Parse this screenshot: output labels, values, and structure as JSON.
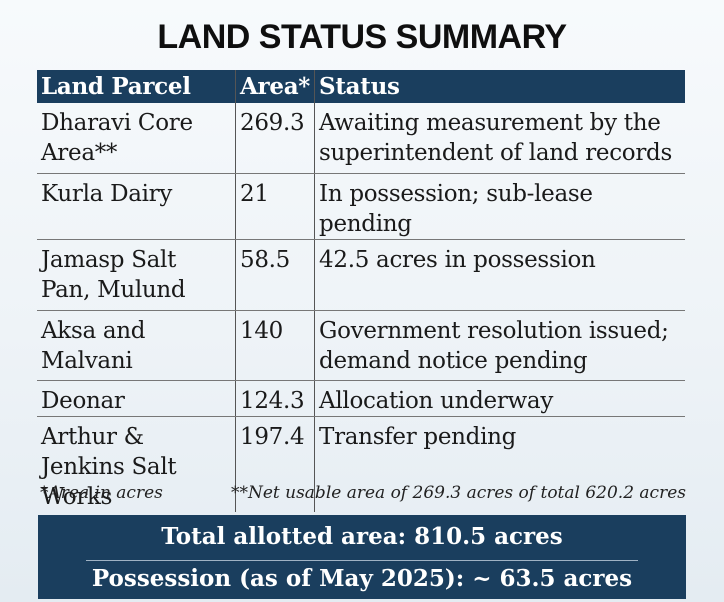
{
  "title": "LAND STATUS SUMMARY",
  "table": {
    "headers": [
      "Land Parcel",
      "Area*",
      "Status"
    ],
    "rows": [
      {
        "parcel": "Dharavi Core Area**",
        "area": "269.3",
        "status": "Awaiting measurement by the superintendent of land records"
      },
      {
        "parcel": "Kurla Dairy",
        "area": "21",
        "status": "In possession; sub-lease pending"
      },
      {
        "parcel": "Jamasp Salt Pan, Mulund",
        "area": "58.5",
        "status": "42.5 acres in possession"
      },
      {
        "parcel": "Aksa and Malvani",
        "area": "140",
        "status": "Government resolution issued; demand notice pending"
      },
      {
        "parcel": "Deonar",
        "area": "124.3",
        "status": "Allocation underway"
      },
      {
        "parcel": "Arthur & Jenkins Salt Works",
        "area": "197.4",
        "status": "Transfer pending"
      }
    ]
  },
  "notes": {
    "area_unit": "*Area in acres",
    "net_usable": "**Net usable area of 269.3 acres of total 620.2 acres"
  },
  "summary": {
    "total": "Total allotted area: 810.5 acres",
    "possession": "Possession (as of May 2025): ~ 63.5 acres"
  }
}
